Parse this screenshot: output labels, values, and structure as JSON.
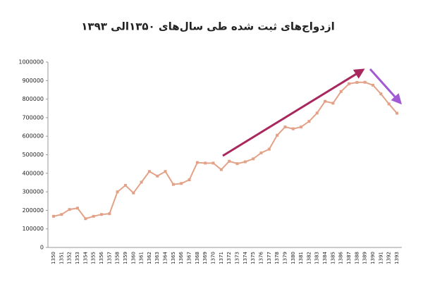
{
  "chart_data": {
    "type": "line",
    "title": "ازدواج‌های ثبت شده طی سال‌های ۱۳۵۰الی ۱۳۹۳",
    "categories": [
      "1350",
      "1351",
      "1352",
      "1353",
      "1354",
      "1355",
      "1356",
      "1357",
      "1358",
      "1359",
      "1360",
      "1361",
      "1362",
      "1363",
      "1364",
      "1365",
      "1366",
      "1367",
      "1368",
      "1369",
      "1370",
      "1371",
      "1372",
      "1373",
      "1374",
      "1375",
      "1376",
      "1377",
      "1378",
      "1379",
      "1380",
      "1381",
      "1382",
      "1383",
      "1384",
      "1385",
      "1386",
      "1387",
      "1388",
      "1389",
      "1390",
      "1391",
      "1392",
      "1393"
    ],
    "values": [
      168000,
      178000,
      205000,
      212000,
      155000,
      168000,
      178000,
      182000,
      300000,
      335000,
      294000,
      352000,
      410000,
      385000,
      410000,
      340000,
      345000,
      365000,
      458000,
      455000,
      455000,
      420000,
      465000,
      452000,
      462000,
      478000,
      510000,
      530000,
      605000,
      650000,
      640000,
      650000,
      680000,
      725000,
      788000,
      778000,
      841000,
      883000,
      890000,
      891000,
      875000,
      828000,
      774000,
      724000
    ],
    "color": "#e3a287",
    "ylim": [
      0,
      1000000
    ],
    "yticks": [
      0,
      100000,
      200000,
      300000,
      400000,
      500000,
      600000,
      700000,
      800000,
      900000,
      1000000
    ]
  }
}
